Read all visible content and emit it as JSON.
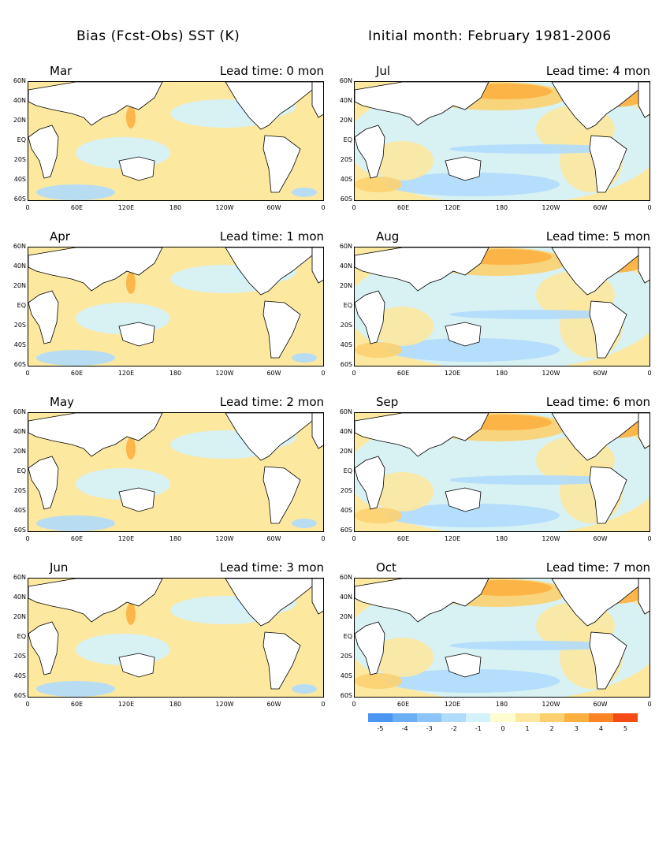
{
  "header": {
    "title_left": "Bias (Fcst-Obs)  SST (K)",
    "title_right": "Initial month: February 1981-2006"
  },
  "axes": {
    "lat_labels": [
      "60N",
      "40N",
      "20N",
      "EQ",
      "20S",
      "40S",
      "60S"
    ],
    "lon_labels": [
      "0",
      "60E",
      "120E",
      "180",
      "120W",
      "60W",
      "0"
    ]
  },
  "panels": [
    {
      "month": "Mar",
      "lead": "Lead time: 0 mon"
    },
    {
      "month": "Jul",
      "lead": "Lead time: 4 mon"
    },
    {
      "month": "Apr",
      "lead": "Lead time: 1 mon"
    },
    {
      "month": "Aug",
      "lead": "Lead time: 5 mon"
    },
    {
      "month": "May",
      "lead": "Lead time: 2 mon"
    },
    {
      "month": "Sep",
      "lead": "Lead time: 6 mon"
    },
    {
      "month": "Jun",
      "lead": "Lead time: 3 mon"
    },
    {
      "month": "Oct",
      "lead": "Lead time: 7 mon"
    }
  ],
  "colorbar": {
    "labels": [
      "-5",
      "-4",
      "-3",
      "-2",
      "-1",
      "0",
      "1",
      "2",
      "3",
      "4",
      "5"
    ],
    "colors": [
      "#4a96f0",
      "#6aaef4",
      "#8cc4f8",
      "#b0dcfc",
      "#d4f2fc",
      "#fdfdd0",
      "#fde8a0",
      "#fcd070",
      "#fcb040",
      "#fc8424",
      "#f44c14"
    ]
  },
  "palette": {
    "land": "#ffffff",
    "warm_weak": "#fde8a0",
    "warm_mid": "#fcd070",
    "warm_strong": "#fcb040",
    "warm_max": "#fc8424",
    "cool_weak": "#d4f2fc",
    "cool_mid": "#b0dcfc",
    "cool_strong": "#8cc4f8"
  }
}
